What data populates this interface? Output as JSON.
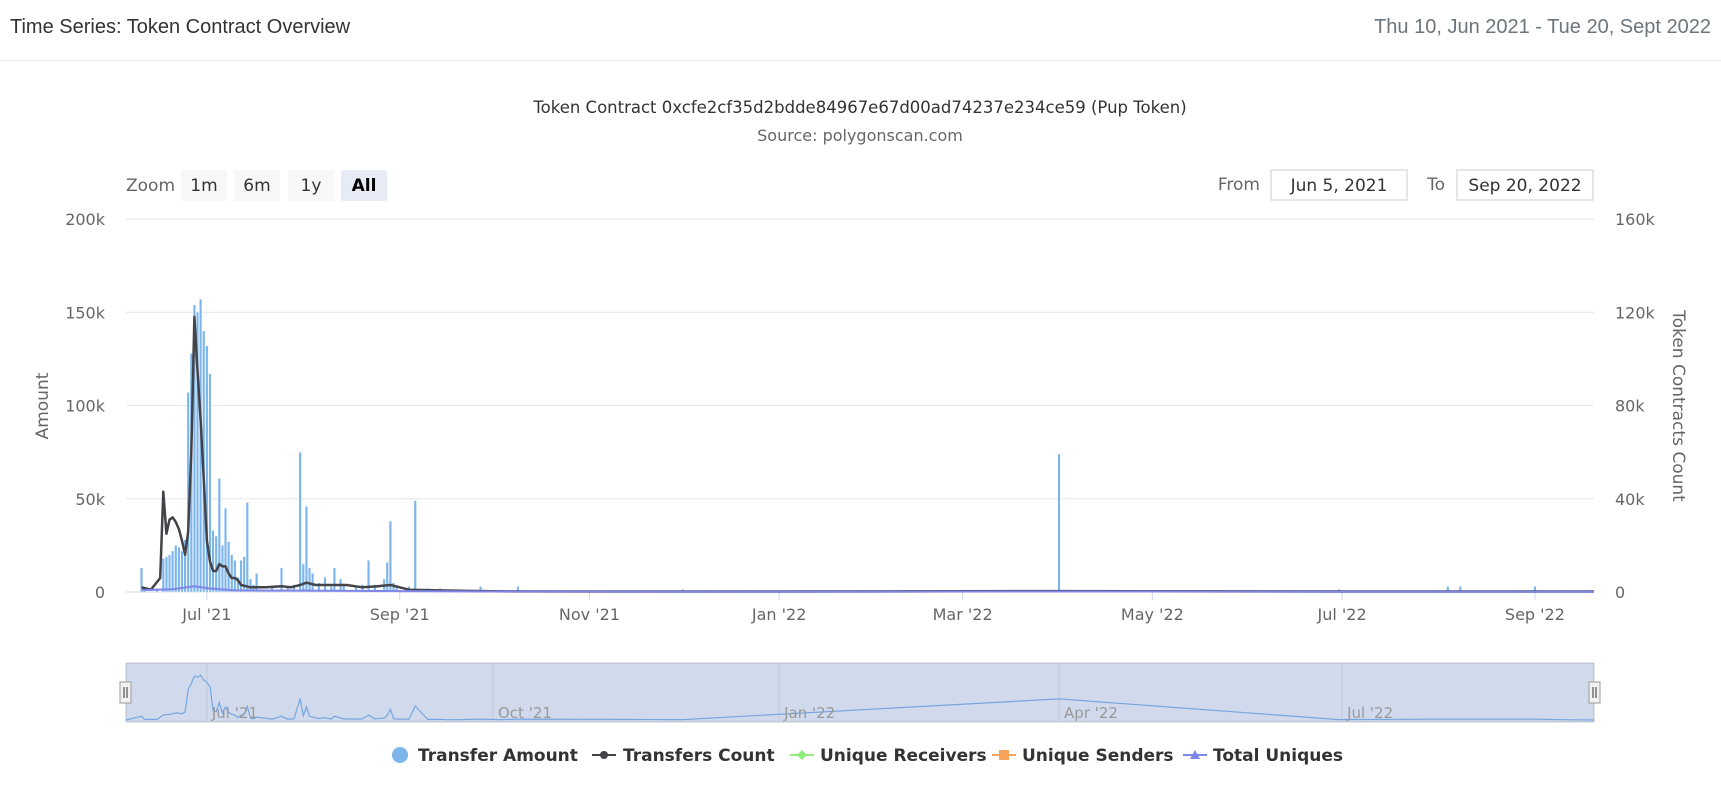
{
  "header": {
    "title": "Time Series: Token Contract Overview",
    "date_range": "Thu 10, Jun 2021 - Tue 20, Sept 2022"
  },
  "chart": {
    "title": "Token Contract 0xcfe2cf35d2bdde84967e67d00ad74237e234ce59 (Pup Token)",
    "subtitle": "Source: polygonscan.com",
    "zoom_label": "Zoom",
    "zoom_buttons": [
      "1m",
      "6m",
      "1y",
      "All"
    ],
    "zoom_selected": "All",
    "from_label": "From",
    "from_value": "Jun 5, 2021",
    "to_label": "To",
    "to_value": "Sep 20, 2022",
    "navigator_labels": [
      "Jul '21",
      "Oct '21",
      "Jan '22",
      "Apr '22",
      "Jul '22"
    ],
    "legend": [
      {
        "name": "Transfer Amount",
        "symbol": "circle",
        "color": "#7cb5ec"
      },
      {
        "name": "Transfers Count",
        "symbol": "line-dot",
        "color": "#434348"
      },
      {
        "name": "Unique Receivers",
        "symbol": "line-diamond",
        "color": "#90ed7d"
      },
      {
        "name": "Unique Senders",
        "symbol": "line-square",
        "color": "#f7a35c"
      },
      {
        "name": "Total Uniques",
        "symbol": "line-triangle",
        "color": "#8085e9"
      }
    ]
  },
  "chart_data": {
    "type": "bar",
    "title": "Token Contract 0xcfe2cf35d2bdde84967e67d00ad74237e234ce59 (Pup Token)",
    "subtitle": "Source: polygonscan.com",
    "xlabel": "",
    "ylabel": "Amount",
    "y2label": "Token Contracts Count",
    "x_range": [
      "2021-06-05",
      "2022-09-20"
    ],
    "ylim": [
      0,
      200000
    ],
    "y2lim": [
      0,
      160000
    ],
    "x_tick_labels": [
      "Jul '21",
      "Sep '21",
      "Nov '21",
      "Jan '22",
      "Mar '22",
      "May '22",
      "Jul '22",
      "Sep '22"
    ],
    "x_tick_dates": [
      "2021-07-01",
      "2021-09-01",
      "2021-11-01",
      "2022-01-01",
      "2022-03-01",
      "2022-05-01",
      "2022-07-01",
      "2022-09-01"
    ],
    "y_tick_labels": [
      "0",
      "50k",
      "100k",
      "150k",
      "200k"
    ],
    "y_tick_values": [
      0,
      50000,
      100000,
      150000,
      200000
    ],
    "y2_tick_labels": [
      "0",
      "40k",
      "80k",
      "120k",
      "160k"
    ],
    "y2_tick_values": [
      0,
      40000,
      80000,
      120000,
      160000
    ],
    "grid": true,
    "legend_position": "bottom",
    "series": [
      {
        "name": "Transfer Amount",
        "type": "column",
        "axis": "left",
        "color": "#7cb5ec",
        "points": [
          [
            "2021-06-10",
            13000
          ],
          [
            "2021-06-11",
            2000
          ],
          [
            "2021-06-15",
            2000
          ],
          [
            "2021-06-17",
            18000
          ],
          [
            "2021-06-18",
            19000
          ],
          [
            "2021-06-19",
            20000
          ],
          [
            "2021-06-20",
            22000
          ],
          [
            "2021-06-21",
            25000
          ],
          [
            "2021-06-22",
            24000
          ],
          [
            "2021-06-23",
            22000
          ],
          [
            "2021-06-24",
            28000
          ],
          [
            "2021-06-25",
            107000
          ],
          [
            "2021-06-26",
            128000
          ],
          [
            "2021-06-27",
            154000
          ],
          [
            "2021-06-28",
            150000
          ],
          [
            "2021-06-29",
            157000
          ],
          [
            "2021-06-30",
            140000
          ],
          [
            "2021-07-01",
            132000
          ],
          [
            "2021-07-02",
            117000
          ],
          [
            "2021-07-03",
            33000
          ],
          [
            "2021-07-04",
            30000
          ],
          [
            "2021-07-05",
            61000
          ],
          [
            "2021-07-06",
            25000
          ],
          [
            "2021-07-07",
            45000
          ],
          [
            "2021-07-08",
            27000
          ],
          [
            "2021-07-09",
            20000
          ],
          [
            "2021-07-10",
            17000
          ],
          [
            "2021-07-11",
            8000
          ],
          [
            "2021-07-12",
            17000
          ],
          [
            "2021-07-13",
            19000
          ],
          [
            "2021-07-14",
            48000
          ],
          [
            "2021-07-15",
            7000
          ],
          [
            "2021-07-16",
            4000
          ],
          [
            "2021-07-17",
            10000
          ],
          [
            "2021-07-22",
            3000
          ],
          [
            "2021-07-25",
            13000
          ],
          [
            "2021-07-27",
            3000
          ],
          [
            "2021-07-29",
            4000
          ],
          [
            "2021-07-31",
            75000
          ],
          [
            "2021-08-01",
            15000
          ],
          [
            "2021-08-02",
            46000
          ],
          [
            "2021-08-03",
            13000
          ],
          [
            "2021-08-04",
            10000
          ],
          [
            "2021-08-06",
            5000
          ],
          [
            "2021-08-08",
            8000
          ],
          [
            "2021-08-10",
            3000
          ],
          [
            "2021-08-11",
            13000
          ],
          [
            "2021-08-13",
            7000
          ],
          [
            "2021-08-14",
            4000
          ],
          [
            "2021-08-18",
            3000
          ],
          [
            "2021-08-20",
            4000
          ],
          [
            "2021-08-22",
            17000
          ],
          [
            "2021-08-24",
            4000
          ],
          [
            "2021-08-27",
            7000
          ],
          [
            "2021-08-28",
            16000
          ],
          [
            "2021-08-29",
            38000
          ],
          [
            "2021-08-30",
            5000
          ],
          [
            "2021-08-31",
            3000
          ],
          [
            "2021-09-04",
            3000
          ],
          [
            "2021-09-06",
            49000
          ],
          [
            "2021-09-10",
            2000
          ],
          [
            "2021-09-14",
            2000
          ],
          [
            "2021-09-16",
            1000
          ],
          [
            "2021-09-20",
            1000
          ],
          [
            "2021-09-27",
            3000
          ],
          [
            "2021-10-04",
            1000
          ],
          [
            "2021-10-09",
            3000
          ],
          [
            "2021-12-01",
            1500
          ],
          [
            "2022-04-01",
            74000
          ],
          [
            "2022-06-30",
            1500
          ],
          [
            "2022-08-04",
            3000
          ],
          [
            "2022-08-08",
            3000
          ],
          [
            "2022-09-01",
            3000
          ],
          [
            "2022-09-10",
            1000
          ]
        ]
      },
      {
        "name": "Transfers Count",
        "type": "line",
        "axis": "right",
        "color": "#434348",
        "points": [
          [
            "2021-06-10",
            2000
          ],
          [
            "2021-06-13",
            1000
          ],
          [
            "2021-06-16",
            6000
          ],
          [
            "2021-06-17",
            43000
          ],
          [
            "2021-06-18",
            25000
          ],
          [
            "2021-06-19",
            31000
          ],
          [
            "2021-06-20",
            32000
          ],
          [
            "2021-06-21",
            30000
          ],
          [
            "2021-06-22",
            27000
          ],
          [
            "2021-06-23",
            22000
          ],
          [
            "2021-06-24",
            16000
          ],
          [
            "2021-06-25",
            26000
          ],
          [
            "2021-06-26",
            60000
          ],
          [
            "2021-06-27",
            118000
          ],
          [
            "2021-06-28",
            95000
          ],
          [
            "2021-06-29",
            74000
          ],
          [
            "2021-06-30",
            48000
          ],
          [
            "2021-07-01",
            22000
          ],
          [
            "2021-07-02",
            13000
          ],
          [
            "2021-07-03",
            9000
          ],
          [
            "2021-07-04",
            9000
          ],
          [
            "2021-07-05",
            12000
          ],
          [
            "2021-07-06",
            11000
          ],
          [
            "2021-07-07",
            11000
          ],
          [
            "2021-07-08",
            8000
          ],
          [
            "2021-07-09",
            6000
          ],
          [
            "2021-07-10",
            6000
          ],
          [
            "2021-07-11",
            5000
          ],
          [
            "2021-07-12",
            3000
          ],
          [
            "2021-07-15",
            2000
          ],
          [
            "2021-07-20",
            2000
          ],
          [
            "2021-07-25",
            2500
          ],
          [
            "2021-07-28",
            2000
          ],
          [
            "2021-07-31",
            3000
          ],
          [
            "2021-08-02",
            4000
          ],
          [
            "2021-08-05",
            3000
          ],
          [
            "2021-08-10",
            3000
          ],
          [
            "2021-08-15",
            3000
          ],
          [
            "2021-08-20",
            2000
          ],
          [
            "2021-08-25",
            2500
          ],
          [
            "2021-08-29",
            3000
          ],
          [
            "2021-09-01",
            2000
          ],
          [
            "2021-09-04",
            1000
          ],
          [
            "2021-09-10",
            800
          ],
          [
            "2021-09-20",
            500
          ],
          [
            "2021-10-01",
            300
          ],
          [
            "2021-11-01",
            200
          ],
          [
            "2022-01-01",
            200
          ],
          [
            "2022-04-01",
            400
          ],
          [
            "2022-07-01",
            200
          ],
          [
            "2022-09-20",
            200
          ]
        ]
      },
      {
        "name": "Total Uniques",
        "type": "line",
        "axis": "right",
        "color": "#8085e9",
        "points": [
          [
            "2021-06-10",
            800
          ],
          [
            "2021-06-20",
            1200
          ],
          [
            "2021-06-27",
            2500
          ],
          [
            "2021-07-02",
            1500
          ],
          [
            "2021-07-10",
            700
          ],
          [
            "2021-08-01",
            600
          ],
          [
            "2021-09-01",
            400
          ],
          [
            "2021-10-01",
            200
          ],
          [
            "2022-01-01",
            150
          ],
          [
            "2022-04-01",
            200
          ],
          [
            "2022-07-01",
            150
          ],
          [
            "2022-09-20",
            150
          ]
        ]
      }
    ]
  }
}
